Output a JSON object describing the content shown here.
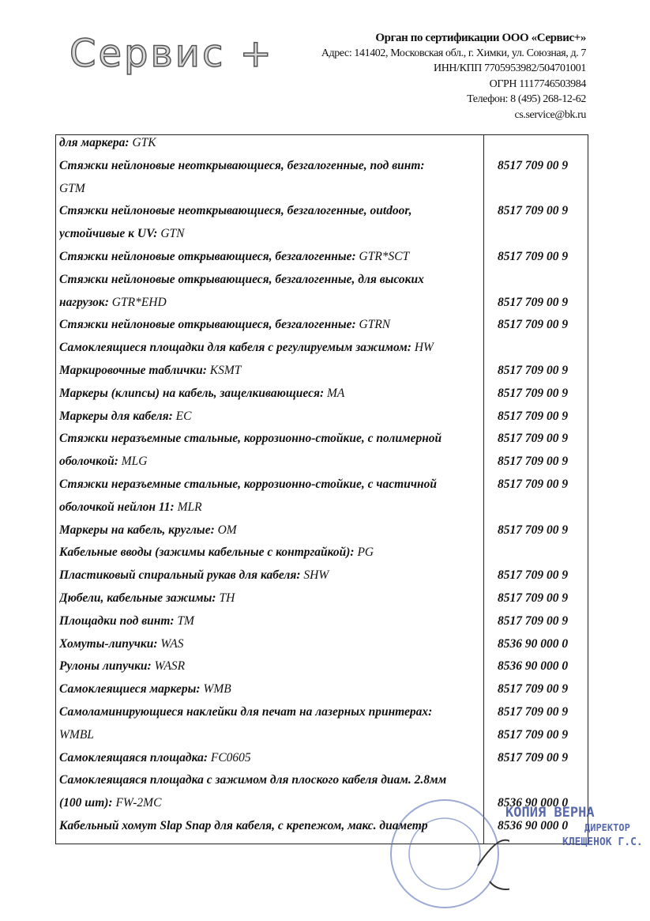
{
  "header": {
    "logo": "Сервис +",
    "org": [
      "Орган по сертификации ООО «Сервис+»",
      "Адрес: 141402, Московская обл., г. Химки, ул. Союзная, д. 7",
      "ИНН/КПП 7705953982/504701001",
      "ОГРН 1117746503984",
      "Телефон: 8 (495) 268-12-62",
      "cs.service@bk.ru"
    ]
  },
  "table": {
    "rows": [
      {
        "bold": "для маркера: ",
        "italic": "GTK"
      },
      {
        "bold": "Стяжки нейлоновые неоткрывающиеся, безгалогенные, под винт:",
        "code": "8517 709 00 9"
      },
      {
        "italic": "GTM"
      },
      {
        "bold": "Стяжки нейлоновые неоткрывающиеся, безгалогенные, outdoor,",
        "code": "8517 709 00 9"
      },
      {
        "bold": "устойчивые к UV: ",
        "italic": "GTN"
      },
      {
        "bold": "Стяжки нейлоновые открывающиеся, безгалогенные: ",
        "italic": "GTR*SCT",
        "code": "8517 709 00 9"
      },
      {
        "bold": "Стяжки нейлоновые открывающиеся, безгалогенные, для высоких"
      },
      {
        "bold": "нагрузок: ",
        "italic": "GTR*EHD",
        "code": "8517 709 00 9"
      },
      {
        "bold": "Стяжки нейлоновые открывающиеся, безгалогенные: ",
        "italic": "GTRN",
        "code": "8517 709 00 9"
      },
      {
        "bold": "Самоклеящиеся площадки для кабеля с регулируемым зажимом: ",
        "italic": "HW"
      },
      {
        "bold": "Маркировочные таблички: ",
        "italic": "KSMT",
        "code": "8517 709 00 9"
      },
      {
        "bold": "Маркеры (клипсы) на кабель, защелкивающиеся: ",
        "italic": "MA",
        "code": "8517 709 00 9"
      },
      {
        "bold": "Маркеры для кабеля: ",
        "italic": "EC",
        "code": "8517 709 00 9"
      },
      {
        "bold": "Стяжки неразъемные стальные, коррозионно-стойкие, с полимерной",
        "code": "8517 709 00 9"
      },
      {
        "bold": "оболочкой: ",
        "italic": "MLG",
        "code": "8517 709 00 9"
      },
      {
        "bold": "Стяжки неразъемные стальные, коррозионно-стойкие, с частичной",
        "code": "8517 709 00 9"
      },
      {
        "bold": "оболочкой нейлон 11: ",
        "italic": "MLR"
      },
      {
        "bold": "Маркеры на кабель, круглые: ",
        "italic": "OM",
        "code": "8517 709 00 9"
      },
      {
        "bold": "Кабельные вводы (зажимы кабельные с контргайкой): ",
        "italic": "PG"
      },
      {
        "bold": "Пластиковый спиральный рукав для кабеля: ",
        "italic": "SHW",
        "code": "8517 709 00 9"
      },
      {
        "bold": "Дюбели, кабельные зажимы: ",
        "italic": "TH",
        "code": "8517 709 00 9"
      },
      {
        "bold": "Площадки под винт: ",
        "italic": "TM",
        "code": "8517 709 00 9"
      },
      {
        "bold": "Хомуты-липучки: ",
        "italic": "WAS",
        "code": "8536 90 000 0"
      },
      {
        "bold": "Рулоны липучки: ",
        "italic": "WASR",
        "code": "8536 90 000 0"
      },
      {
        "bold": "Самоклеящиеся маркеры: ",
        "italic": "WMB",
        "code": "8517 709 00 9"
      },
      {
        "bold": "Самоламинирующиеся наклейки для печат на лазерных принтерах:",
        "code": "8517 709 00 9"
      },
      {
        "italic": "WMBL",
        "code": "8517 709 00 9"
      },
      {
        "bold": "Самоклеящаяся площадка: ",
        "italic": "FC0605",
        "code": "8517 709 00 9"
      },
      {
        "bold": "Самоклеящаяся площадка с зажимом для плоского кабеля диам. 2.8мм"
      },
      {
        "bold": "(100 шт): ",
        "italic": "FW-2MC",
        "code": "8536 90 000 0"
      },
      {
        "bold": "Кабельный хомут Slap Snap для кабеля, с крепежом, макс. диаметр",
        "code": "8536 90 000 0"
      }
    ]
  },
  "stamp": {
    "lines": [
      "КОПИЯ  ВЕРНА",
      "ДИРЕКТОР",
      "КЛЕЩЕНОК Г.С."
    ]
  }
}
